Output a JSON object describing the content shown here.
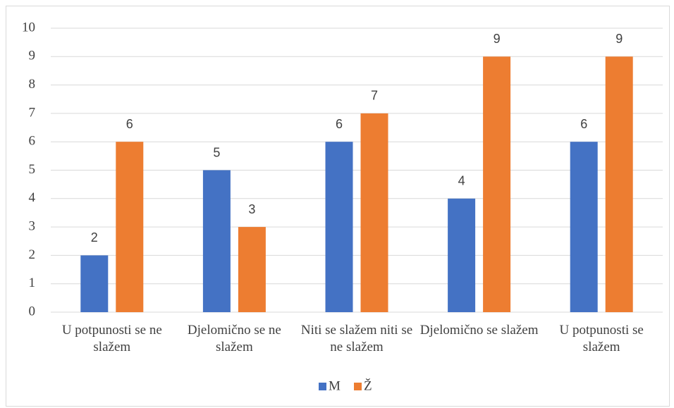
{
  "chart_data": {
    "type": "bar",
    "categories": [
      "U potpunosti se ne slažem",
      "Djelomično se ne slažem",
      "Niti se slažem niti se ne slažem",
      "Djelomično se slažem",
      "U potpunosti se slažem"
    ],
    "series": [
      {
        "name": "M",
        "color": "#4472c4",
        "values": [
          2,
          5,
          6,
          4,
          6
        ]
      },
      {
        "name": "Ž",
        "color": "#ed7d31",
        "values": [
          6,
          3,
          7,
          9,
          9
        ]
      }
    ],
    "ylim": [
      0,
      10
    ],
    "yticks": [
      0,
      1,
      2,
      3,
      4,
      5,
      6,
      7,
      8,
      9,
      10
    ],
    "grid": true,
    "legend": "bottom"
  }
}
